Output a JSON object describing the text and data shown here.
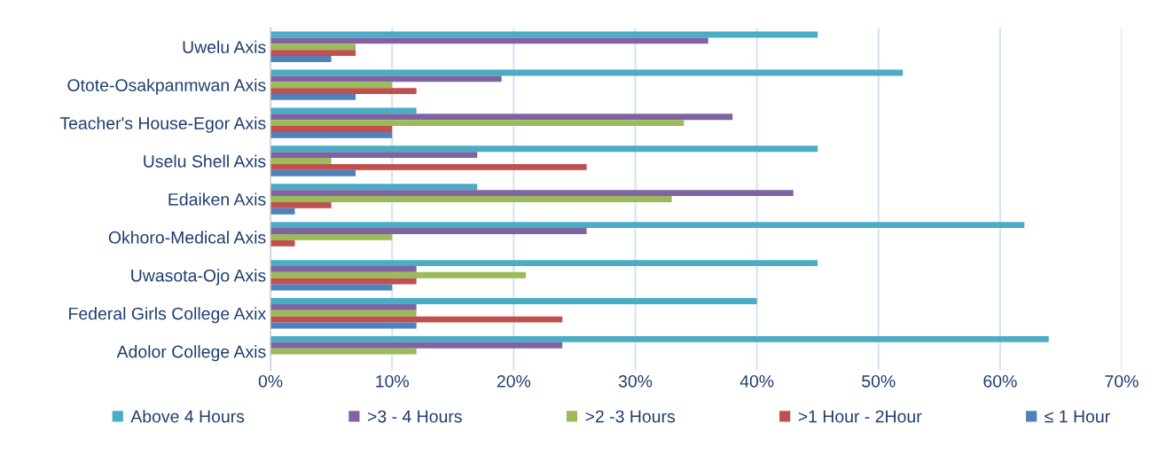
{
  "chart_data": {
    "type": "bar",
    "orientation": "horizontal",
    "categories": [
      "Uwelu Axis",
      "Otote-Osakpanmwan Axis",
      "Teacher's House-Egor Axis",
      "Uselu Shell Axis",
      "Edaiken Axis",
      "Okhoro-Medical Axis",
      "Uwasota-Ojo Axis",
      "Federal Girls College Axix",
      "Adolor College Axis"
    ],
    "series": [
      {
        "name": "Above 4 Hours",
        "color": "#4bacc6",
        "values": [
          45,
          52,
          12,
          45,
          17,
          62,
          45,
          40,
          64
        ]
      },
      {
        "name": ">3 - 4 Hours",
        "color": "#8064a2",
        "values": [
          36,
          19,
          38,
          17,
          43,
          26,
          12,
          12,
          24
        ]
      },
      {
        "name": ">2 -3 Hours",
        "color": "#9bbb59",
        "values": [
          7,
          10,
          34,
          5,
          33,
          10,
          21,
          12,
          12
        ]
      },
      {
        "name": ">1 Hour - 2Hour",
        "color": "#c0504d",
        "values": [
          7,
          12,
          10,
          26,
          5,
          2,
          12,
          24,
          0
        ]
      },
      {
        "name": "≤ 1 Hour",
        "color": "#4f81bd",
        "values": [
          5,
          7,
          10,
          7,
          2,
          0,
          10,
          12,
          0
        ]
      }
    ],
    "xlim": [
      0,
      70
    ],
    "xticks": [
      {
        "value": 0,
        "label": "0%"
      },
      {
        "value": 10,
        "label": "10%"
      },
      {
        "value": 20,
        "label": "20%"
      },
      {
        "value": 30,
        "label": "30%"
      },
      {
        "value": 40,
        "label": "40%"
      },
      {
        "value": 50,
        "label": "50%"
      },
      {
        "value": 60,
        "label": "60%"
      },
      {
        "value": 70,
        "label": "70%"
      }
    ],
    "grid": "x",
    "legend": "bottom"
  }
}
